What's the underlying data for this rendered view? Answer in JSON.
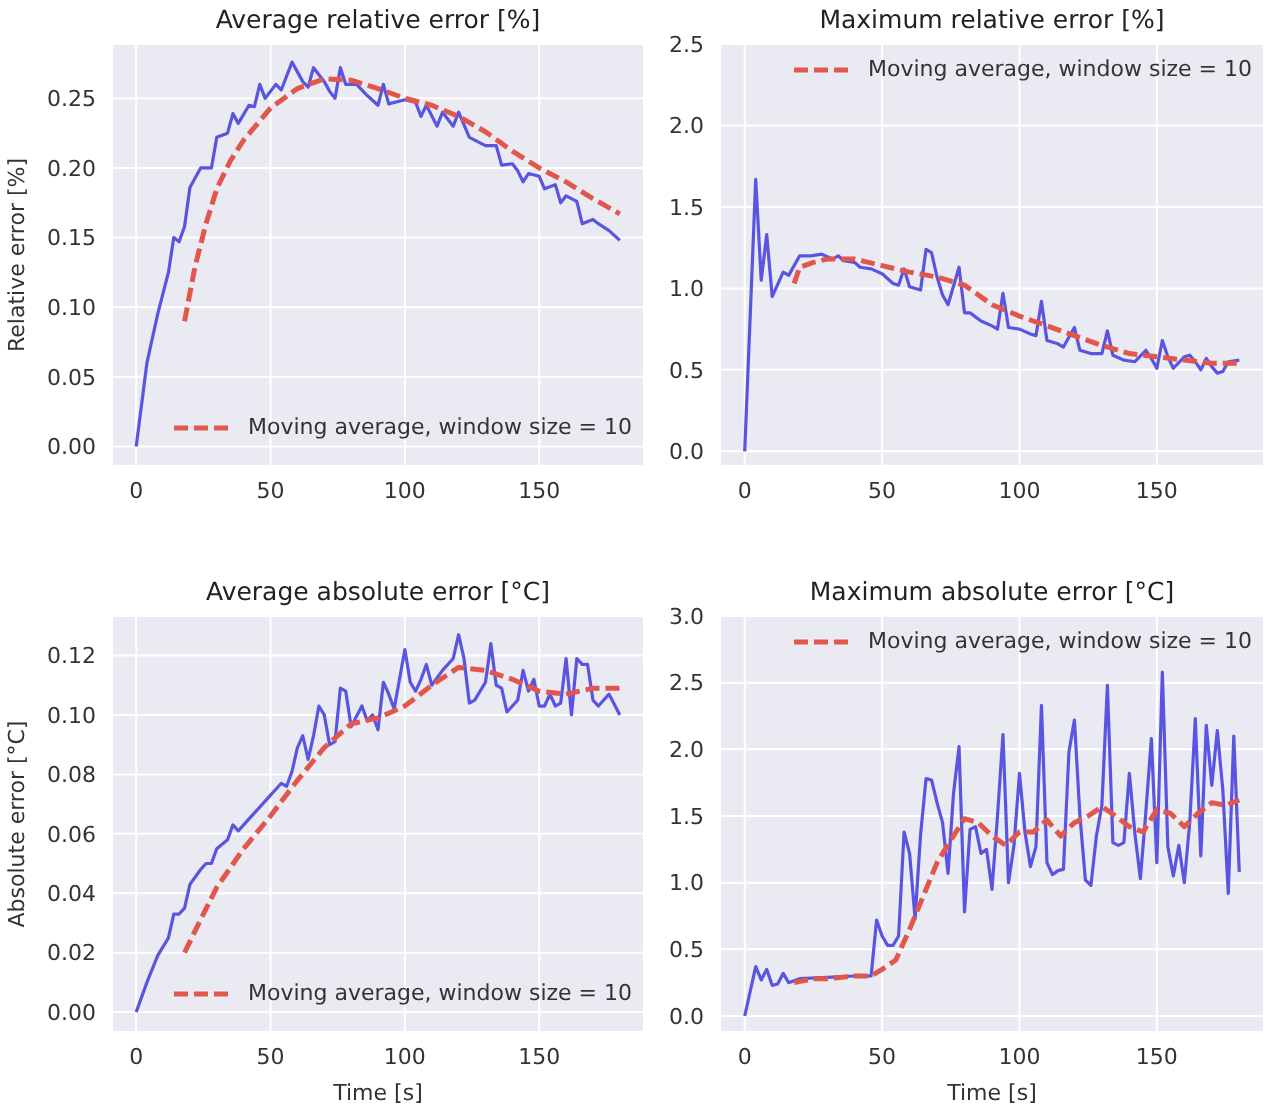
{
  "chart_data": [
    {
      "type": "line",
      "title": "Average relative error [%]",
      "ylabel": "Relative error [%]",
      "xlim": [
        -9,
        189
      ],
      "ylim": [
        -0.014,
        0.289
      ],
      "xticks": [
        0,
        50,
        100,
        150
      ],
      "yticks": [
        {
          "value": 0,
          "label": "0.00"
        },
        0.05,
        {
          "value": 0.1,
          "label": "0.10"
        },
        0.15,
        {
          "value": 0.2,
          "label": "0.20"
        },
        0.25
      ],
      "grid": true,
      "legend": "bottom right",
      "series": [
        {
          "color": "#5a55e0",
          "x": [
            0,
            4,
            8,
            12,
            14,
            16,
            18,
            20,
            24,
            28,
            30,
            34,
            36,
            38,
            42,
            44,
            46,
            48,
            52,
            54,
            58,
            62,
            64,
            66,
            70,
            72,
            74,
            76,
            78,
            82,
            86,
            90,
            92,
            94,
            100,
            104,
            106,
            108,
            112,
            114,
            118,
            120,
            124,
            126,
            130,
            134,
            136,
            140,
            142,
            144,
            146,
            150,
            152,
            156,
            158,
            160,
            164,
            166,
            170,
            172,
            176,
            180
          ],
          "values": [
            0,
            0.06,
            0.095,
            0.125,
            0.15,
            0.147,
            0.158,
            0.186,
            0.2,
            0.2,
            0.222,
            0.225,
            0.239,
            0.232,
            0.245,
            0.244,
            0.26,
            0.25,
            0.26,
            0.256,
            0.276,
            0.262,
            0.258,
            0.272,
            0.262,
            0.255,
            0.25,
            0.272,
            0.26,
            0.26,
            0.252,
            0.245,
            0.26,
            0.246,
            0.249,
            0.247,
            0.237,
            0.245,
            0.23,
            0.24,
            0.23,
            0.24,
            0.222,
            0.22,
            0.216,
            0.216,
            0.202,
            0.203,
            0.198,
            0.19,
            0.196,
            0.194,
            0.185,
            0.188,
            0.175,
            0.18,
            0.176,
            0.16,
            0.163,
            0.16,
            0.155,
            0.148
          ]
        },
        {
          "name": "Moving average, window size = 10",
          "color": "#e2574c",
          "line_style": "dashed",
          "x": [
            18,
            22,
            26,
            30,
            35,
            40,
            50,
            60,
            70,
            80,
            90,
            100,
            110,
            120,
            130,
            140,
            150,
            160,
            170,
            180
          ],
          "values": [
            0.09,
            0.13,
            0.16,
            0.185,
            0.205,
            0.22,
            0.243,
            0.257,
            0.264,
            0.263,
            0.257,
            0.25,
            0.245,
            0.237,
            0.226,
            0.212,
            0.2,
            0.19,
            0.178,
            0.167
          ]
        }
      ]
    },
    {
      "type": "line",
      "title": "Maximum relative error [%]",
      "xlim": [
        -9,
        189
      ],
      "ylim": [
        -0.09,
        2.5
      ],
      "xticks": [
        0,
        50,
        100,
        150
      ],
      "yticks": [
        {
          "value": 0,
          "label": "0.0"
        },
        0.5,
        {
          "value": 1,
          "label": "1.0"
        },
        1.5,
        {
          "value": 2,
          "label": "2.0"
        },
        2.5
      ],
      "grid": true,
      "legend": "top right",
      "series": [
        {
          "color": "#5a55e0",
          "x": [
            0,
            4,
            6,
            8,
            10,
            14,
            16,
            20,
            24,
            28,
            32,
            34,
            36,
            40,
            42,
            46,
            50,
            54,
            56,
            58,
            60,
            64,
            66,
            68,
            70,
            72,
            74,
            78,
            80,
            82,
            86,
            90,
            92,
            94,
            96,
            100,
            104,
            106,
            108,
            110,
            114,
            116,
            120,
            122,
            126,
            130,
            132,
            134,
            138,
            142,
            146,
            148,
            150,
            152,
            154,
            156,
            160,
            162,
            164,
            166,
            168,
            170,
            172,
            174,
            176,
            180
          ],
          "values": [
            0,
            1.67,
            1.05,
            1.33,
            0.95,
            1.1,
            1.08,
            1.2,
            1.2,
            1.21,
            1.18,
            1.2,
            1.17,
            1.16,
            1.13,
            1.12,
            1.09,
            1.03,
            1.02,
            1.12,
            1.01,
            0.99,
            1.24,
            1.22,
            1.07,
            0.96,
            0.9,
            1.13,
            0.85,
            0.85,
            0.8,
            0.77,
            0.75,
            0.97,
            0.76,
            0.75,
            0.72,
            0.71,
            0.92,
            0.68,
            0.66,
            0.64,
            0.76,
            0.62,
            0.6,
            0.6,
            0.74,
            0.59,
            0.56,
            0.55,
            0.62,
            0.57,
            0.51,
            0.68,
            0.58,
            0.51,
            0.58,
            0.59,
            0.55,
            0.5,
            0.57,
            0.52,
            0.48,
            0.49,
            0.55,
            0.56
          ]
        },
        {
          "name": "Moving average, window size = 10",
          "color": "#e2574c",
          "line_style": "dashed",
          "x": [
            18,
            20,
            25,
            30,
            40,
            50,
            60,
            70,
            80,
            90,
            100,
            110,
            120,
            130,
            140,
            150,
            160,
            170,
            180
          ],
          "values": [
            1.03,
            1.13,
            1.16,
            1.18,
            1.18,
            1.14,
            1.1,
            1.07,
            1.02,
            0.9,
            0.83,
            0.77,
            0.71,
            0.65,
            0.6,
            0.58,
            0.56,
            0.54,
            0.54
          ]
        }
      ]
    },
    {
      "type": "line",
      "title": "Average absolute error [°C]",
      "xlabel": "Time [s]",
      "ylabel": "Absolute error [°C]",
      "xlim": [
        -9,
        189
      ],
      "ylim": [
        -0.0067,
        0.1333
      ],
      "xticks": [
        0,
        50,
        100,
        150
      ],
      "yticks": [
        {
          "value": 0,
          "label": "0.00"
        },
        0.02,
        0.04,
        0.06,
        0.08,
        {
          "value": 0.1,
          "label": "0.10"
        },
        0.12
      ],
      "grid": true,
      "legend": "bottom right",
      "series": [
        {
          "color": "#5a55e0",
          "x": [
            0,
            4,
            8,
            12,
            14,
            16,
            18,
            20,
            24,
            26,
            28,
            30,
            34,
            36,
            38,
            42,
            46,
            50,
            52,
            54,
            56,
            58,
            60,
            62,
            64,
            66,
            68,
            70,
            72,
            74,
            76,
            78,
            80,
            84,
            86,
            88,
            90,
            92,
            94,
            96,
            100,
            102,
            104,
            106,
            108,
            110,
            114,
            118,
            120,
            122,
            124,
            126,
            130,
            132,
            134,
            136,
            138,
            140,
            142,
            144,
            146,
            148,
            150,
            152,
            154,
            156,
            158,
            160,
            162,
            164,
            166,
            168,
            170,
            172,
            176,
            180
          ],
          "values": [
            0,
            0.01,
            0.019,
            0.025,
            0.033,
            0.033,
            0.035,
            0.043,
            0.048,
            0.05,
            0.05,
            0.055,
            0.058,
            0.063,
            0.061,
            0.065,
            0.069,
            0.073,
            0.075,
            0.077,
            0.076,
            0.081,
            0.089,
            0.093,
            0.085,
            0.093,
            0.103,
            0.1,
            0.09,
            0.091,
            0.109,
            0.108,
            0.096,
            0.103,
            0.098,
            0.1,
            0.095,
            0.111,
            0.107,
            0.102,
            0.122,
            0.111,
            0.108,
            0.112,
            0.117,
            0.11,
            0.115,
            0.119,
            0.127,
            0.119,
            0.104,
            0.105,
            0.111,
            0.124,
            0.11,
            0.109,
            0.101,
            0.103,
            0.105,
            0.115,
            0.108,
            0.112,
            0.103,
            0.103,
            0.107,
            0.103,
            0.104,
            0.119,
            0.1,
            0.119,
            0.117,
            0.117,
            0.105,
            0.103,
            0.107,
            0.1
          ]
        },
        {
          "name": "Moving average, window size = 10",
          "color": "#e2574c",
          "line_style": "dashed",
          "x": [
            18,
            25,
            30,
            40,
            50,
            60,
            70,
            80,
            90,
            100,
            110,
            120,
            130,
            140,
            150,
            160,
            170,
            180
          ],
          "values": [
            0.02,
            0.033,
            0.042,
            0.055,
            0.066,
            0.078,
            0.089,
            0.097,
            0.099,
            0.103,
            0.11,
            0.116,
            0.115,
            0.112,
            0.108,
            0.107,
            0.109,
            0.109
          ]
        }
      ]
    },
    {
      "type": "line",
      "title": "Maximum absolute error [°C]",
      "xlabel": "Time [s]",
      "xlim": [
        -9,
        189
      ],
      "ylim": [
        -0.12,
        3
      ],
      "xticks": [
        0,
        50,
        100,
        150
      ],
      "yticks": [
        {
          "value": 0,
          "label": "0.0"
        },
        0.5,
        {
          "value": 1,
          "label": "1.0"
        },
        1.5,
        {
          "value": 2,
          "label": "2.0"
        },
        2.5,
        {
          "value": 3,
          "label": "3.0"
        }
      ],
      "grid": true,
      "legend": "top right",
      "series": [
        {
          "color": "#5a55e0",
          "x": [
            0,
            4,
            6,
            8,
            10,
            12,
            14,
            16,
            20,
            30,
            40,
            46,
            48,
            50,
            52,
            54,
            56,
            58,
            60,
            62,
            64,
            66,
            68,
            70,
            72,
            74,
            76,
            78,
            80,
            82,
            84,
            86,
            88,
            90,
            92,
            94,
            96,
            98,
            100,
            102,
            104,
            106,
            108,
            110,
            112,
            114,
            116,
            118,
            120,
            122,
            124,
            126,
            128,
            130,
            132,
            134,
            136,
            138,
            140,
            142,
            144,
            146,
            148,
            150,
            152,
            154,
            156,
            158,
            160,
            162,
            164,
            166,
            168,
            170,
            172,
            174,
            176,
            178,
            180
          ],
          "values": [
            0,
            0.37,
            0.27,
            0.35,
            0.23,
            0.24,
            0.32,
            0.25,
            0.28,
            0.29,
            0.3,
            0.3,
            0.72,
            0.6,
            0.53,
            0.53,
            0.6,
            1.38,
            1.22,
            0.73,
            1.36,
            1.78,
            1.77,
            1.6,
            1.45,
            1.07,
            1.67,
            2.02,
            0.78,
            1.4,
            1.42,
            1.22,
            1.25,
            0.95,
            1.5,
            2.11,
            1,
            1.28,
            1.82,
            1.38,
            1.12,
            1.27,
            2.33,
            1.15,
            1.06,
            1.09,
            1.1,
            1.98,
            2.22,
            1.5,
            1.02,
            0.98,
            1.35,
            1.58,
            2.48,
            1.3,
            1.28,
            1.3,
            1.82,
            1.37,
            1.03,
            1.53,
            2.08,
            1.15,
            2.58,
            1.27,
            1.05,
            1.28,
            1,
            1.46,
            2.23,
            1.2,
            2.18,
            1.73,
            2.14,
            1.7,
            0.92,
            2.1,
            1.08
          ]
        },
        {
          "name": "Moving average, window size = 10",
          "color": "#e2574c",
          "line_style": "dashed",
          "x": [
            18,
            25,
            30,
            40,
            46,
            50,
            55,
            60,
            65,
            70,
            75,
            80,
            85,
            90,
            95,
            100,
            105,
            110,
            115,
            120,
            125,
            130,
            135,
            140,
            145,
            150,
            155,
            160,
            165,
            170,
            175,
            180
          ],
          "values": [
            0.25,
            0.28,
            0.28,
            0.3,
            0.3,
            0.35,
            0.42,
            0.65,
            0.9,
            1.15,
            1.32,
            1.48,
            1.45,
            1.35,
            1.28,
            1.38,
            1.38,
            1.47,
            1.35,
            1.45,
            1.5,
            1.57,
            1.5,
            1.42,
            1.38,
            1.55,
            1.52,
            1.42,
            1.52,
            1.6,
            1.58,
            1.62
          ]
        }
      ]
    }
  ]
}
